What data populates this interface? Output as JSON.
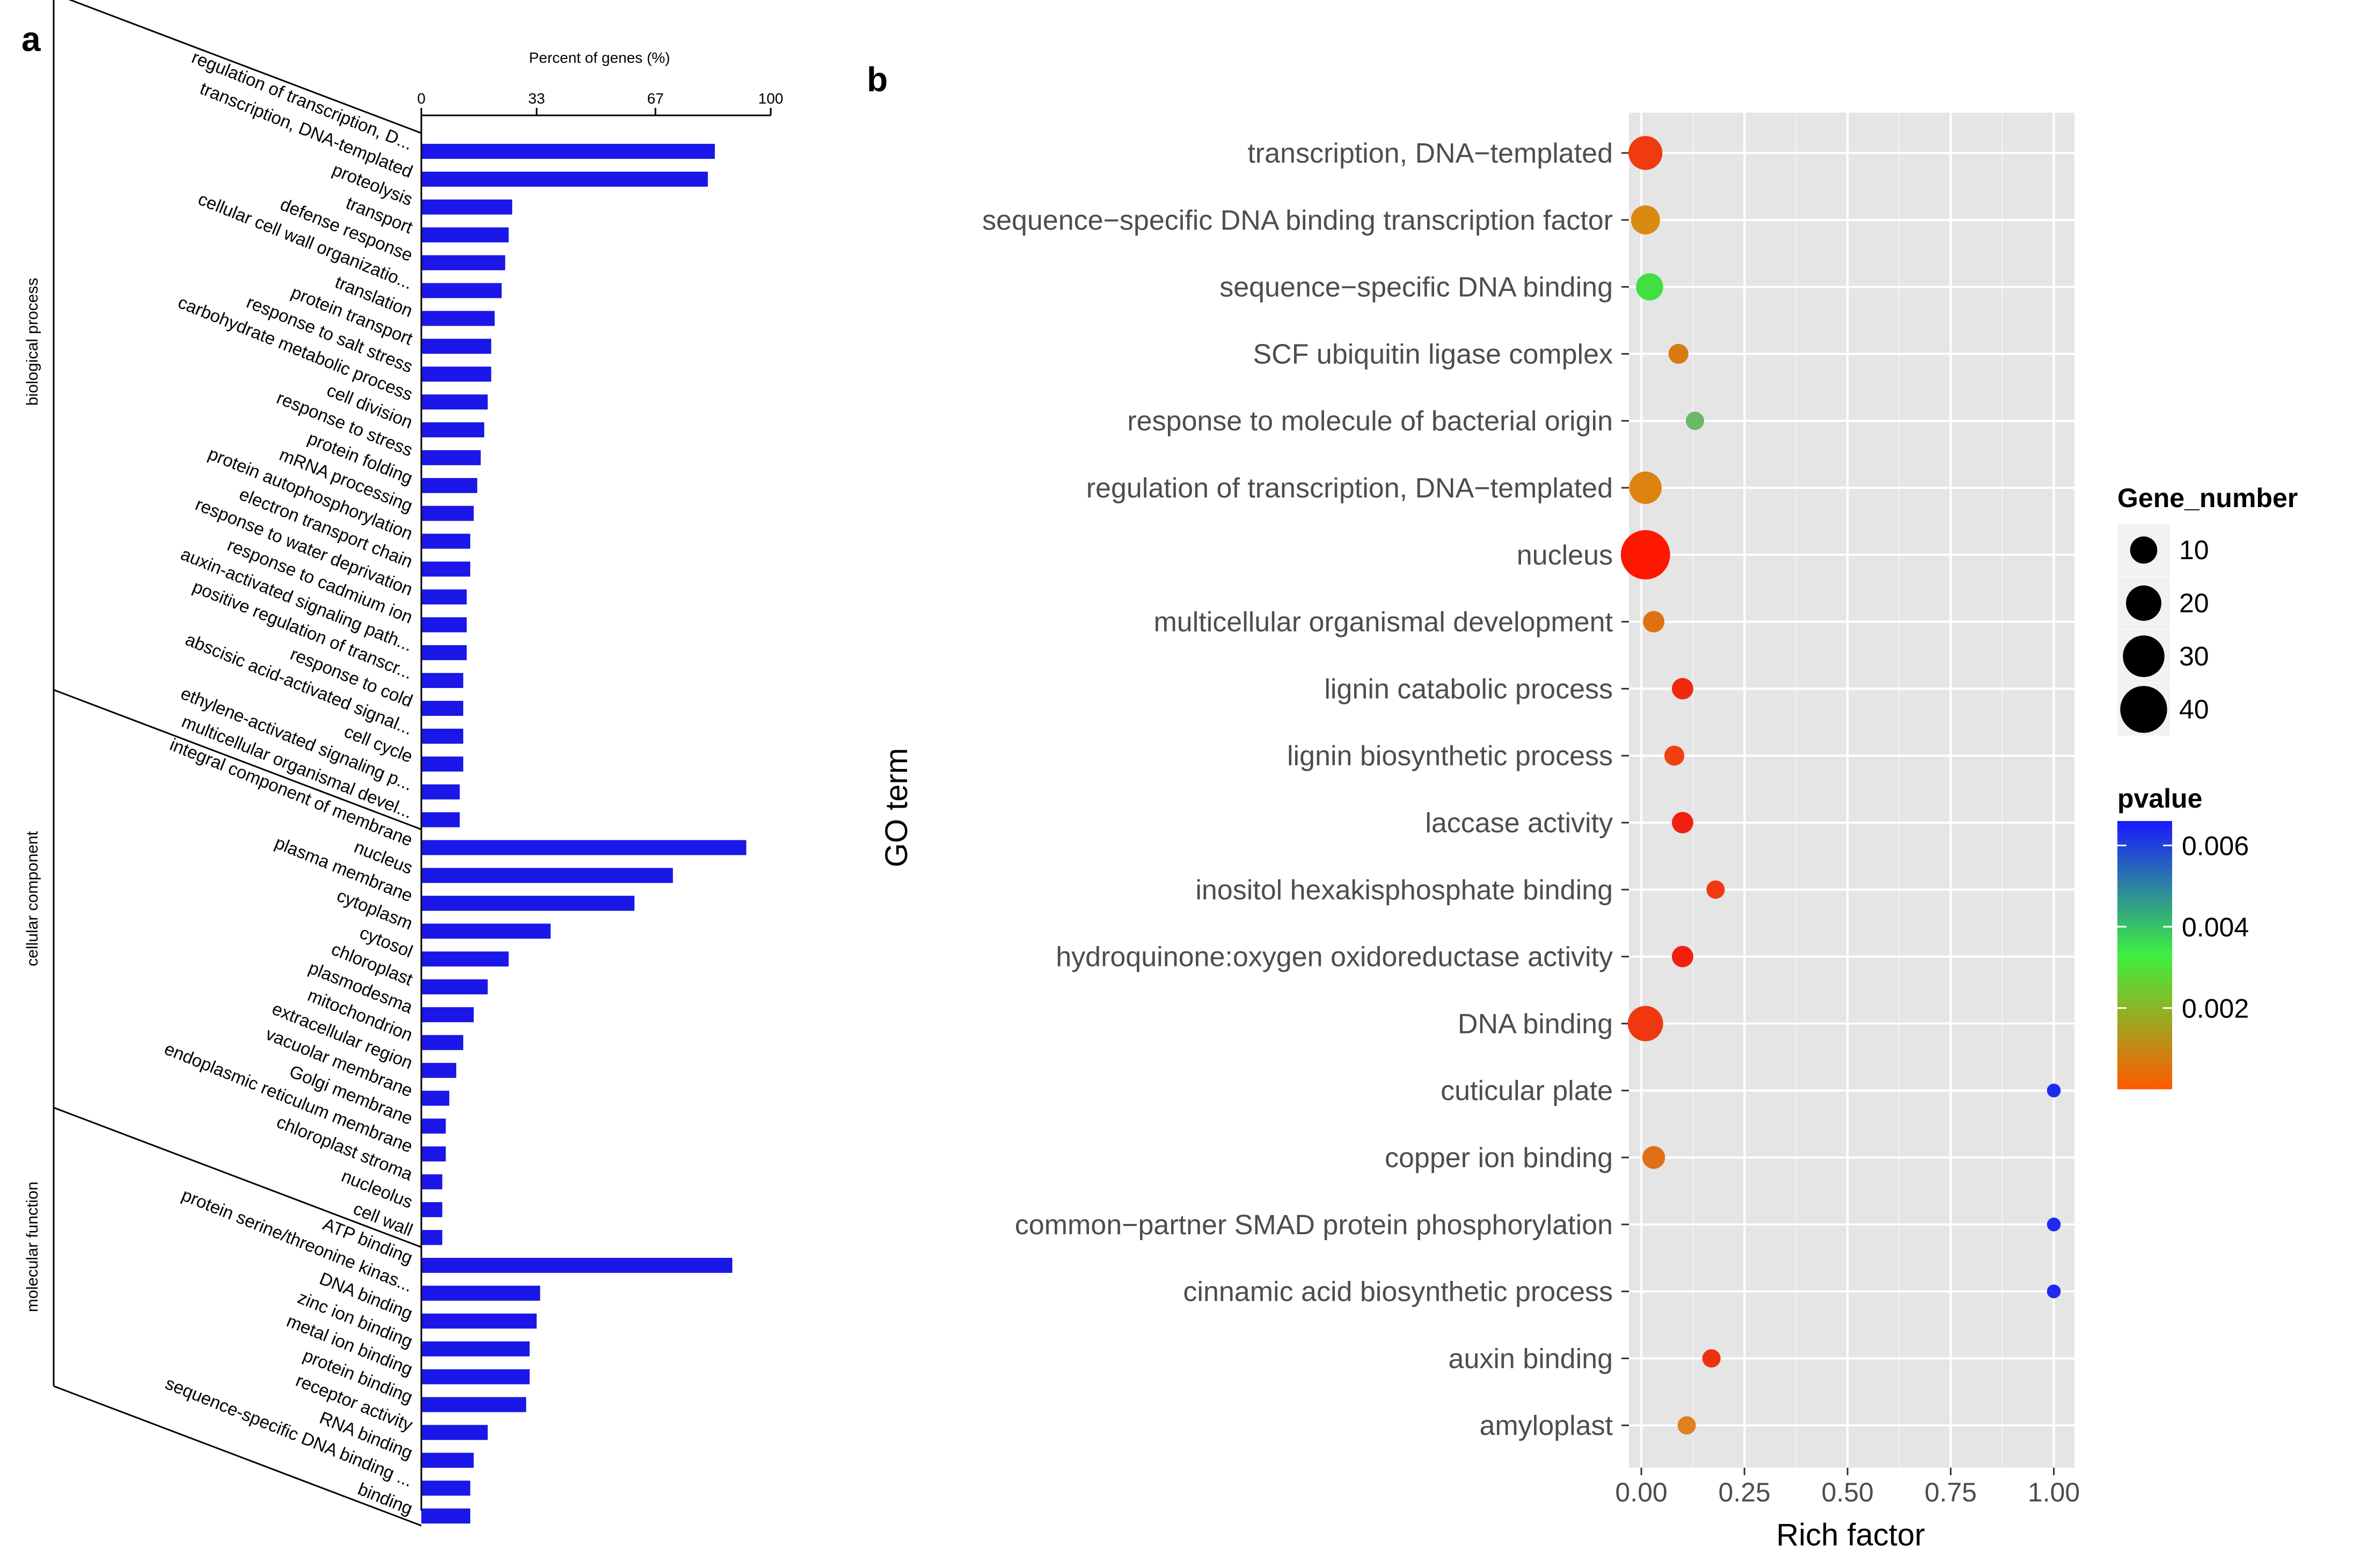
{
  "panel_a_letter": "a",
  "panel_b_letter": "b",
  "chart_data": [
    {
      "type": "bar",
      "orientation": "horizontal",
      "title": "Percent of genes (%)",
      "xlim": [
        0,
        100
      ],
      "xticks": [
        "0",
        "33",
        "67",
        "100"
      ],
      "bar_color": "#1a17e8",
      "groups": [
        {
          "name": "biological process",
          "categories": [
            "regulation of transcription, D...",
            "transcription, DNA-templated",
            "proteolysis",
            "transport",
            "defense response",
            "cellular cell wall organizatio...",
            "translation",
            "protein transport",
            "response to salt stress",
            "carbohydrate metabolic process",
            "cell division",
            "response to stress",
            "protein folding",
            "mRNA processing",
            "protein autophosphorylation",
            "electron transport chain",
            "response to water deprivation",
            "response to cadmium ion",
            "auxin-activated signaling path...",
            "positive regulation of transcr...",
            "response to cold",
            "abscisic acid-activated signal...",
            "cell cycle",
            "ethylene-activated signaling p...",
            "multicellular organismal devel..."
          ],
          "values": [
            84,
            82,
            26,
            25,
            24,
            23,
            21,
            20,
            20,
            19,
            18,
            17,
            16,
            15,
            14,
            14,
            13,
            13,
            13,
            12,
            12,
            12,
            12,
            11,
            11
          ]
        },
        {
          "name": "cellular component",
          "categories": [
            "integral component of membrane",
            "nucleus",
            "plasma membrane",
            "cytoplasm",
            "cytosol",
            "chloroplast",
            "plasmodesma",
            "mitochondrion",
            "extracellular region",
            "vacuolar membrane",
            "Golgi membrane",
            "endoplasmic reticulum membrane",
            "chloroplast stroma",
            "nucleolus",
            "cell wall"
          ],
          "values": [
            93,
            72,
            61,
            37,
            25,
            19,
            15,
            12,
            10,
            8,
            7,
            7,
            6,
            6,
            6
          ]
        },
        {
          "name": "molecular function",
          "categories": [
            "ATP binding",
            "protein serine/threonine kinas...",
            "DNA binding",
            "zinc ion binding",
            "metal ion binding",
            "protein binding",
            "receptor activity",
            "RNA binding",
            "sequence-specific DNA binding ...",
            "binding"
          ],
          "values": [
            89,
            34,
            33,
            31,
            31,
            30,
            19,
            15,
            14,
            14
          ]
        }
      ]
    },
    {
      "type": "scatter",
      "xlabel": "Rich factor",
      "ylabel": "GO term",
      "xlim": [
        -0.03,
        1.05
      ],
      "xticks": [
        "0.00",
        "0.25",
        "0.50",
        "0.75",
        "1.00"
      ],
      "grid": true,
      "background": "#e5e5e5",
      "categories": [
        "transcription, DNA−templated",
        "sequence−specific DNA binding transcription factor",
        "sequence−specific DNA binding",
        "SCF ubiquitin ligase complex",
        "response to molecule of bacterial origin",
        "regulation of transcription, DNA−templated",
        "nucleus",
        "multicellular organismal development",
        "lignin catabolic process",
        "lignin biosynthetic process",
        "laccase activity",
        "inositol hexakisphosphate binding",
        "hydroquinone:oxygen oxidoreductase activity",
        "DNA binding",
        "cuticular plate",
        "copper ion binding",
        "common−partner SMAD protein phosphorylation",
        "cinnamic acid biosynthetic process",
        "auxin binding",
        "amyloplast"
      ],
      "points": [
        {
          "x": 0.01,
          "gene_number": 18,
          "color": "#f03a10"
        },
        {
          "x": 0.01,
          "gene_number": 12,
          "color": "#d98a10"
        },
        {
          "x": 0.02,
          "gene_number": 10,
          "color": "#40e040"
        },
        {
          "x": 0.09,
          "gene_number": 4,
          "color": "#d97a10"
        },
        {
          "x": 0.13,
          "gene_number": 3,
          "color": "#6ab86a"
        },
        {
          "x": 0.01,
          "gene_number": 16,
          "color": "#de8210"
        },
        {
          "x": 0.01,
          "gene_number": 45,
          "color": "#ff1800"
        },
        {
          "x": 0.03,
          "gene_number": 5,
          "color": "#e07010"
        },
        {
          "x": 0.1,
          "gene_number": 5,
          "color": "#f02810"
        },
        {
          "x": 0.08,
          "gene_number": 4,
          "color": "#f04010"
        },
        {
          "x": 0.1,
          "gene_number": 5,
          "color": "#f02010"
        },
        {
          "x": 0.18,
          "gene_number": 3,
          "color": "#f03a10"
        },
        {
          "x": 0.1,
          "gene_number": 5,
          "color": "#f02010"
        },
        {
          "x": 0.01,
          "gene_number": 20,
          "color": "#f03810"
        },
        {
          "x": 1.0,
          "gene_number": 1,
          "color": "#1f2af0"
        },
        {
          "x": 0.03,
          "gene_number": 6,
          "color": "#e07018"
        },
        {
          "x": 1.0,
          "gene_number": 1,
          "color": "#1f2af0"
        },
        {
          "x": 1.0,
          "gene_number": 1,
          "color": "#1f2af0"
        },
        {
          "x": 0.17,
          "gene_number": 3,
          "color": "#f03010"
        },
        {
          "x": 0.11,
          "gene_number": 3,
          "color": "#e08020"
        }
      ],
      "legend_size": {
        "title": "Gene_number",
        "labels": [
          "10",
          "20",
          "30",
          "40"
        ],
        "values": [
          10,
          20,
          30,
          40
        ]
      },
      "legend_color": {
        "title": "pvalue",
        "labels": [
          "0.006",
          "0.004",
          "0.002"
        ],
        "values": [
          0.006,
          0.004,
          0.002
        ],
        "range": [
          0.0,
          0.0066
        ],
        "low_color": "#ff5a00",
        "mid_color": "#3ff03f",
        "high_color": "#1a1aff"
      },
      "legend_placement": "right"
    }
  ]
}
